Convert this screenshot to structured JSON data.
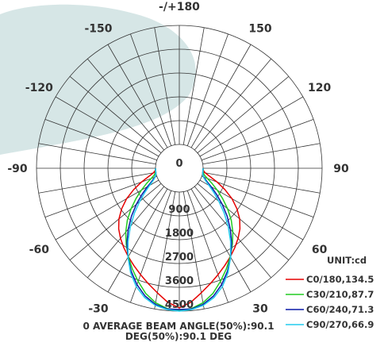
{
  "colors": {
    "background_blob": "#d6e6e6",
    "grid": "#333333"
  },
  "chart_data": {
    "type": "polar",
    "title": "",
    "unit_label": "UNIT:cd",
    "footer": "0 AVERAGE BEAM ANGLE(50%):90.1 DEG(50%):90.1 DEG",
    "angle_ticks": [
      {
        "deg": 180,
        "label": "-/+180"
      },
      {
        "deg": -150,
        "label": "-150"
      },
      {
        "deg": 150,
        "label": "150"
      },
      {
        "deg": -120,
        "label": "-120"
      },
      {
        "deg": 120,
        "label": "120"
      },
      {
        "deg": -90,
        "label": "-90"
      },
      {
        "deg": 90,
        "label": "90"
      },
      {
        "deg": -60,
        "label": "-60"
      },
      {
        "deg": 60,
        "label": "60"
      },
      {
        "deg": -30,
        "label": "-30"
      },
      {
        "deg": 30,
        "label": "30"
      }
    ],
    "radial_ticks": [
      0,
      900,
      1800,
      2700,
      3600,
      4500
    ],
    "radial_max": 4500,
    "angles": [
      0,
      5,
      10,
      15,
      20,
      25,
      30,
      35,
      40,
      45,
      50,
      55,
      60,
      65,
      70,
      75,
      80,
      85,
      90
    ],
    "series": [
      {
        "name": "C0/180,134.5",
        "color": "#e60000",
        "values": [
          4380,
          4180,
          3880,
          3620,
          3380,
          3160,
          2960,
          2760,
          2560,
          2340,
          2080,
          1760,
          1400,
          1000,
          620,
          300,
          90,
          10,
          0
        ]
      },
      {
        "name": "C30/210,87.7",
        "color": "#22cc22",
        "values": [
          4480,
          4420,
          4260,
          4000,
          3650,
          3300,
          2960,
          2600,
          2250,
          1880,
          1480,
          1100,
          760,
          470,
          230,
          80,
          15,
          0,
          0
        ]
      },
      {
        "name": "C60/240,71.3",
        "color": "#0a1aa8",
        "values": [
          4440,
          4440,
          4320,
          4100,
          3780,
          3400,
          2980,
          2550,
          2100,
          1660,
          1220,
          820,
          490,
          240,
          90,
          20,
          0,
          0,
          0
        ]
      },
      {
        "name": "C90/270,66.9",
        "color": "#22ccee",
        "values": [
          4500,
          4460,
          4360,
          4160,
          3860,
          3460,
          2980,
          2480,
          1980,
          1500,
          1060,
          690,
          400,
          190,
          70,
          15,
          0,
          0,
          0
        ]
      }
    ]
  }
}
